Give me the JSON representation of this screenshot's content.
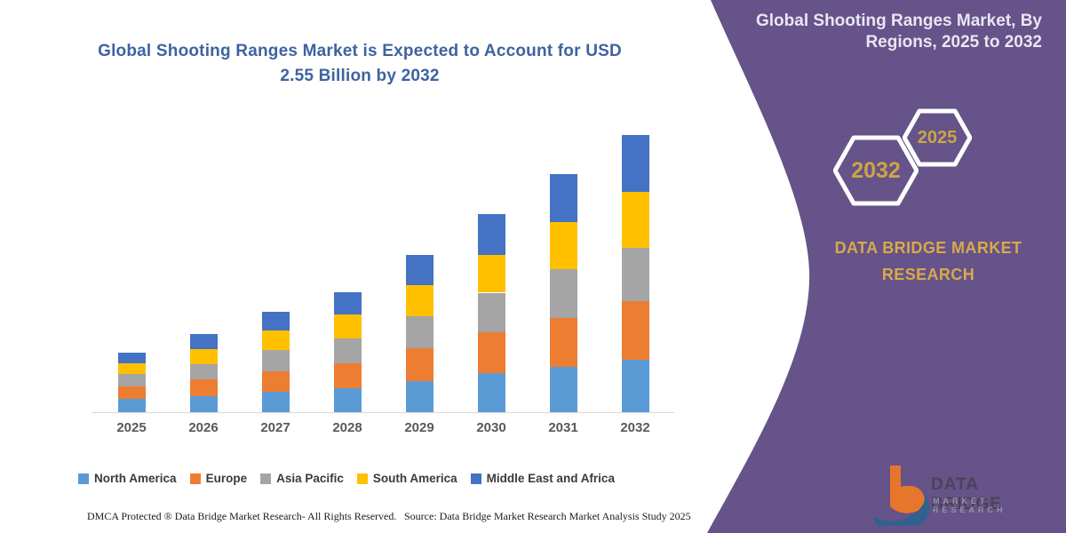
{
  "accent_colors": {
    "panel_purple": "#655389",
    "title_blue": "#3f63a0",
    "gold": "#cda546",
    "axis_line": "#d9d9d9",
    "axis_label": "#595959"
  },
  "header": {
    "title_line1": "Global Shooting Ranges Market is Expected to Account for USD",
    "title_line2": "2.55 Billion by 2032"
  },
  "panel": {
    "title_line1": "Global Shooting Ranges Market, By",
    "title_line2": "Regions, 2025 to 2032",
    "hexagon_back_year": "2025",
    "hexagon_front_year": "2032",
    "brand_line1": "DATA BRIDGE MARKET",
    "brand_line2": "RESEARCH",
    "logo_name": "DATA BRIDGE",
    "logo_tagline": "MARKET RESEARCH"
  },
  "footer": {
    "dmca": "DMCA Protected ® Data Bridge Market Research-  All Rights Reserved.",
    "source": "Source: Data Bridge Market Research  Market Analysis Study 2025"
  },
  "chart_data": {
    "type": "bar",
    "stacked": true,
    "title": "Global Shooting Ranges Market is Expected to Account for USD 2.55 Billion by 2032",
    "unit": "USD Billion",
    "categories": [
      "2025",
      "2026",
      "2027",
      "2028",
      "2029",
      "2030",
      "2031",
      "2032"
    ],
    "series": [
      {
        "name": "North America",
        "color": "#5B9BD5",
        "values": [
          0.12,
          0.15,
          0.19,
          0.22,
          0.29,
          0.36,
          0.42,
          0.48
        ]
      },
      {
        "name": "Europe",
        "color": "#ED7D31",
        "values": [
          0.12,
          0.15,
          0.19,
          0.23,
          0.3,
          0.38,
          0.45,
          0.54
        ]
      },
      {
        "name": "Asia Pacific",
        "color": "#A5A5A5",
        "values": [
          0.11,
          0.14,
          0.19,
          0.23,
          0.29,
          0.36,
          0.45,
          0.49
        ]
      },
      {
        "name": "South America",
        "color": "#FFC000",
        "values": [
          0.1,
          0.14,
          0.18,
          0.22,
          0.29,
          0.35,
          0.43,
          0.52
        ]
      },
      {
        "name": "Middle East and Africa",
        "color": "#4472C4",
        "values": [
          0.1,
          0.14,
          0.17,
          0.2,
          0.28,
          0.37,
          0.44,
          0.52
        ]
      }
    ],
    "totals_by_year": [
      0.55,
      0.72,
      0.92,
      1.1,
      1.45,
      1.82,
      2.19,
      2.55
    ],
    "ylim": [
      0,
      2.55
    ],
    "grid": false,
    "y_axis_visible": false,
    "legend_position": "bottom"
  }
}
